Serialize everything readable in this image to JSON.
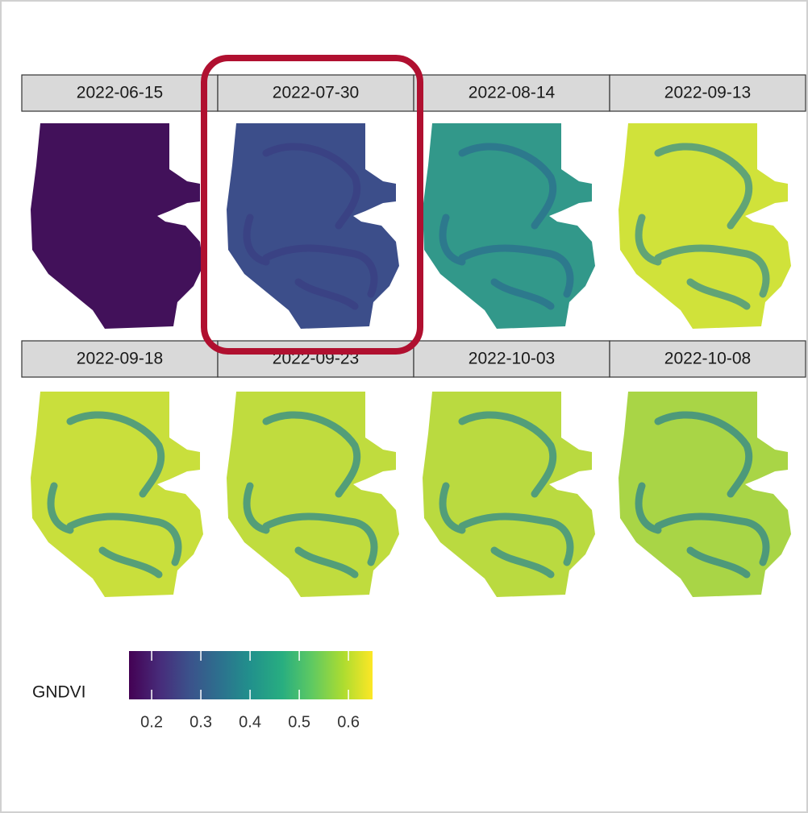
{
  "panels": [
    {
      "label": "2022-06-15"
    },
    {
      "label": "2022-07-30"
    },
    {
      "label": "2022-08-14"
    },
    {
      "label": "2022-09-13"
    },
    {
      "label": "2022-09-18"
    },
    {
      "label": "2022-09-23"
    },
    {
      "label": "2022-10-03"
    },
    {
      "label": "2022-10-08"
    }
  ],
  "legend": {
    "title": "GNDVI",
    "lim": [
      0.154,
      0.649
    ],
    "ticks": [
      0.2,
      0.3,
      0.4,
      0.5,
      0.6
    ]
  }
}
